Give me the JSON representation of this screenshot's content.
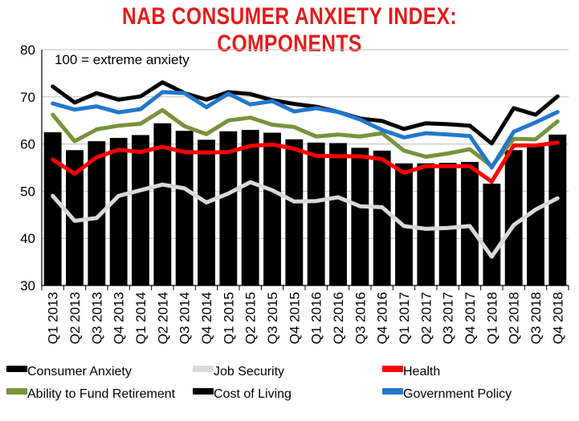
{
  "chart_data": {
    "type": "bar",
    "title": "NAB CONSUMER ANXIETY INDEX: COMPONENTS",
    "annotation": "100 = extreme anxiety",
    "categories": [
      "Q1 2013",
      "Q2 2013",
      "Q3 2013",
      "Q4 2013",
      "Q1 2014",
      "Q2 2014",
      "Q3 2014",
      "Q4 2014",
      "Q1 2015",
      "Q2 2015",
      "Q3 2015",
      "Q4 2015",
      "Q1 2016",
      "Q2 2016",
      "Q3 2016",
      "Q4 2016",
      "Q1 2017",
      "Q2 2017",
      "Q3 2017",
      "Q4 2017",
      "Q1 2018",
      "Q2 2018",
      "Q3 2018",
      "Q4 2018"
    ],
    "ylim": [
      30,
      80
    ],
    "yticks": [
      30,
      40,
      50,
      60,
      70,
      80
    ],
    "grid": true,
    "legend_position": "bottom",
    "series": [
      {
        "name": "Consumer Anxiety",
        "kind": "bar",
        "color": "#000000",
        "values": [
          62.5,
          58.7,
          60.6,
          61.3,
          61.9,
          64.4,
          62.8,
          60.9,
          62.7,
          63.0,
          62.4,
          61.0,
          60.3,
          60.2,
          59.2,
          58.6,
          55.9,
          55.9,
          56.0,
          56.2,
          51.6,
          58.7,
          59.6,
          62.0
        ]
      },
      {
        "name": "Job Security",
        "kind": "line",
        "color": "#d9d9d9",
        "values": [
          49.0,
          43.7,
          44.3,
          49.0,
          50.2,
          51.4,
          50.6,
          47.6,
          49.5,
          51.9,
          50.2,
          47.8,
          47.9,
          48.7,
          46.8,
          46.6,
          42.6,
          42.0,
          42.2,
          42.6,
          36.1,
          42.8,
          46.1,
          48.5
        ]
      },
      {
        "name": "Health",
        "kind": "line",
        "color": "#ff0000",
        "values": [
          56.7,
          53.7,
          57.2,
          58.8,
          58.3,
          59.4,
          58.3,
          58.2,
          58.3,
          59.6,
          59.9,
          59.0,
          57.5,
          57.4,
          57.4,
          56.8,
          53.9,
          55.3,
          55.3,
          55.3,
          52.0,
          59.7,
          59.7,
          60.3
        ]
      },
      {
        "name": "Ability to Fund Retirement",
        "kind": "line",
        "color": "#77933c",
        "values": [
          66.2,
          60.6,
          63.1,
          63.9,
          64.3,
          67.2,
          63.8,
          62.1,
          65.0,
          65.6,
          64.1,
          63.6,
          61.6,
          62.0,
          61.6,
          62.3,
          58.6,
          57.3,
          58.0,
          58.9,
          55.3,
          61.1,
          61.0,
          64.8
        ]
      },
      {
        "name": "Cost of Living",
        "kind": "line",
        "color": "#000000",
        "values": [
          72.2,
          68.8,
          70.8,
          69.4,
          70.1,
          73.1,
          70.8,
          69.4,
          71.0,
          70.6,
          69.3,
          68.5,
          67.9,
          66.8,
          65.4,
          64.9,
          63.2,
          64.4,
          64.2,
          63.9,
          60.1,
          67.6,
          66.2,
          70.1
        ]
      },
      {
        "name": "Government Policy",
        "kind": "line",
        "color": "#2277cc",
        "values": [
          68.6,
          67.3,
          68.0,
          66.7,
          67.4,
          71.0,
          70.8,
          67.8,
          70.7,
          68.4,
          69.1,
          66.9,
          67.6,
          66.8,
          65.2,
          63.0,
          61.4,
          62.3,
          62.0,
          61.7,
          55.0,
          62.6,
          64.6,
          66.8
        ]
      }
    ]
  }
}
